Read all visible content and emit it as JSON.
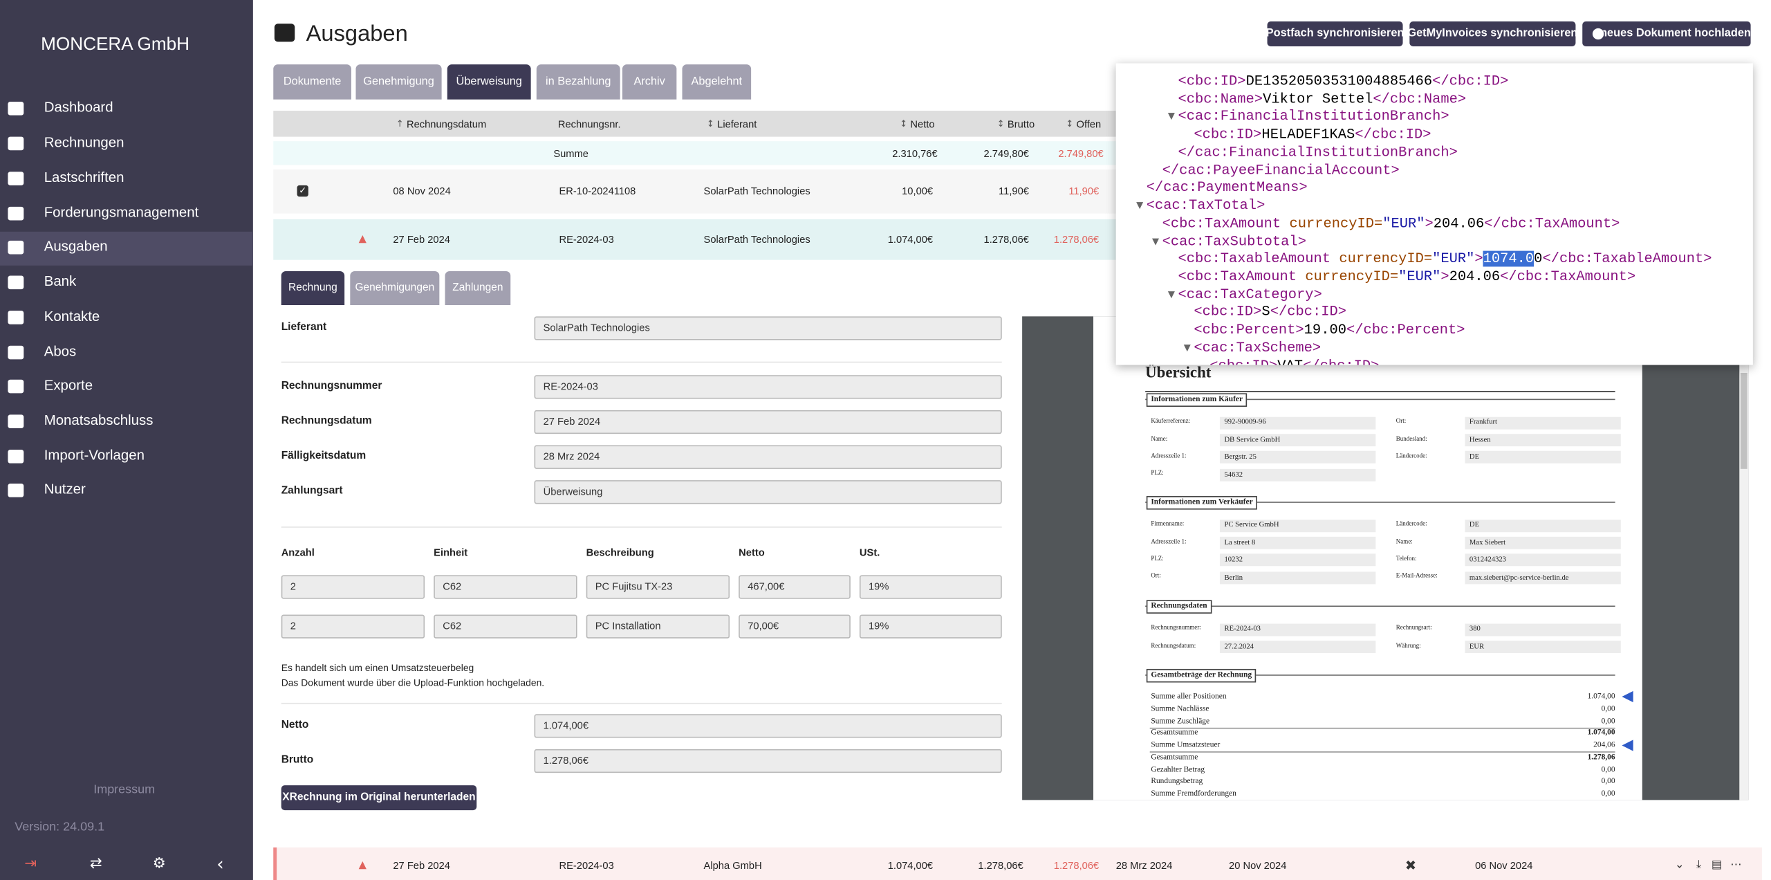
{
  "sidebar": {
    "brand": "MONCERA GmbH",
    "nav": [
      "Dashboard",
      "Rechnungen",
      "Lastschriften",
      "Forderungsmanagement",
      "Ausgaben",
      "Bank",
      "Kontakte",
      "Abos",
      "Exporte",
      "Monatsabschluss",
      "Import-Vorlagen",
      "Nutzer"
    ],
    "impressum": "Impressum",
    "version": "Version: 24.09.1"
  },
  "header": {
    "title": "Ausgaben",
    "buttons": [
      "Postfach synchronisieren",
      "GetMyInvoices synchronisieren",
      "neues Dokument hochladen"
    ]
  },
  "tabs": [
    "Dokumente",
    "Genehmigung",
    "Überweisung",
    "in Bezahlung",
    "Archiv",
    "Abgelehnt"
  ],
  "table": {
    "columns": [
      "Rechnungsdatum",
      "Rechnungsnr.",
      "Lieferant",
      "Netto",
      "Brutto",
      "Offen"
    ],
    "sum": {
      "label": "Summe",
      "netto": "2.310,76€",
      "brutto": "2.749,80€",
      "offen": "2.749,80€"
    },
    "rows": [
      [
        "08 Nov 2024",
        "ER-10-20241108",
        "SolarPath Technologies",
        "10,00€",
        "11,90€",
        "11,90€"
      ],
      [
        "27 Feb 2024",
        "RE-2024-03",
        "SolarPath Technologies",
        "1.074,00€",
        "1.278,06€",
        "1.278,06€"
      ]
    ],
    "bottom_row": [
      "27 Feb 2024",
      "RE-2024-03",
      "Alpha GmbH",
      "1.074,00€",
      "1.278,06€",
      "1.278,06€",
      "28 Mrz 2024",
      "20 Nov 2024",
      "06 Nov 2024"
    ]
  },
  "detail": {
    "tabs": [
      "Rechnung",
      "Genehmigungen",
      "Zahlungen"
    ],
    "fields": [
      {
        "label": "Lieferant",
        "value": "SolarPath Technologies"
      },
      {
        "label": "Rechnungsnummer",
        "value": "RE-2024-03"
      },
      {
        "label": "Rechnungsdatum",
        "value": "27 Feb 2024"
      },
      {
        "label": "Fälligkeitsdatum",
        "value": "28 Mrz 2024"
      },
      {
        "label": "Zahlungsart",
        "value": "Überweisung"
      }
    ],
    "items": {
      "columns": [
        "Anzahl",
        "Einheit",
        "Beschreibung",
        "Netto",
        "USt."
      ],
      "rows": [
        [
          "2",
          "C62",
          "PC Fujitsu TX-23",
          "467,00€",
          "19%"
        ],
        [
          "2",
          "C62",
          "PC Installation",
          "70,00€",
          "19%"
        ]
      ]
    },
    "notes": [
      "Es handelt sich um einen Umsatzsteuerbeleg",
      "Das Dokument wurde über die Upload-Funktion hochgeladen."
    ],
    "totals": [
      {
        "label": "Netto",
        "value": "1.074,00€"
      },
      {
        "label": "Brutto",
        "value": "1.278,06€"
      }
    ],
    "download": "XRechnung im Original herunterladen"
  },
  "pdf": {
    "heading": "Übersicht",
    "sections": [
      {
        "title": "Informationen zum Käufer",
        "fields": [
          [
            "Käuferreferenz:",
            "992-90009-96"
          ],
          [
            "Ort:",
            "Frankfurt"
          ],
          [
            "Name:",
            "DB Service GmbH"
          ],
          [
            "Bundesland:",
            "Hessen"
          ],
          [
            "Adresszeile 1:",
            "Bergstr. 25"
          ],
          [
            "Ländercode:",
            "DE"
          ],
          [
            "PLZ:",
            "54632"
          ]
        ]
      },
      {
        "title": "Informationen zum Verkäufer",
        "fields": [
          [
            "Firmenname:",
            "PC Service GmbH"
          ],
          [
            "Ländercode:",
            "DE"
          ],
          [
            "Adresszeile 1:",
            "La street 8"
          ],
          [
            "Name:",
            "Max Siebert"
          ],
          [
            "PLZ:",
            "10232"
          ],
          [
            "Telefon:",
            "0312424323"
          ],
          [
            "Ort:",
            "Berlin"
          ],
          [
            "E-Mail-Adresse:",
            "max.siebert@pc-service-berlin.de"
          ]
        ]
      },
      {
        "title": "Rechnungsdaten",
        "fields": [
          [
            "Rechnungsnummer:",
            "RE-2024-03"
          ],
          [
            "Rechnungsart:",
            "380"
          ],
          [
            "Rechnungsdatum:",
            "27.2.2024"
          ],
          [
            "Währung:",
            "EUR"
          ]
        ]
      }
    ],
    "totals_title": "Gesamtbeträge der Rechnung",
    "totals": [
      [
        "Summe aller Positionen",
        "1.074,00"
      ],
      [
        "Summe Nachlässe",
        "0,00"
      ],
      [
        "Summe Zuschläge",
        "0,00"
      ],
      [
        "Gesamtsumme",
        "1.074,00"
      ],
      [
        "Summe Umsatzsteuer",
        "204,06"
      ],
      [
        "Gesamtsumme",
        "1.278,06"
      ],
      [
        "Gezahlter Betrag",
        "0,00"
      ],
      [
        "Rundungsbetrag",
        "0,00"
      ],
      [
        "Summe Fremdforderungen",
        "0,00"
      ]
    ]
  },
  "xml": {
    "lines": [
      "<cbc:ID>DE13520503531004885466</cbc:ID>",
      "<cbc:Name>Viktor Settel</cbc:Name>",
      "<cac:FinancialInstitutionBranch>",
      "<cbc:ID>HELADEF1KAS</cbc:ID>",
      "</cac:FinancialInstitutionBranch>",
      "</cac:PayeeFinancialAccount>",
      "</cac:PaymentMeans>",
      "<cac:TaxTotal>",
      "<cbc:TaxAmount currencyID=\"EUR\">204.06</cbc:TaxAmount>",
      "<cac:TaxSubtotal>",
      "<cbc:TaxableAmount currencyID=\"EUR\">1074.00</cbc:TaxableAmount>",
      "<cbc:TaxAmount currencyID=\"EUR\">204.06</cbc:TaxAmount>",
      "<cac:TaxCategory>",
      "<cbc:ID>S</cbc:ID>",
      "<cbc:Percent>19.00</cbc:Percent>",
      "<cac:TaxScheme>",
      "<cbc:ID>VAT</cbc:ID>"
    ]
  }
}
